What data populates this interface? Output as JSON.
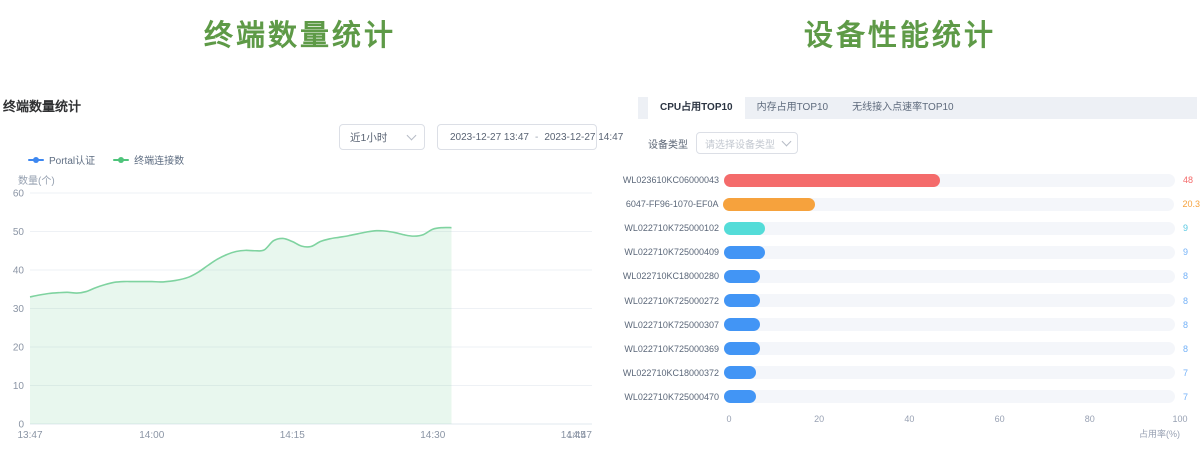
{
  "theme": {
    "title_green": "#5e9a47"
  },
  "left_panel": {
    "big_title": "终端数量统计",
    "panel_title": "终端数量统计",
    "time_select": {
      "value": "近1小时"
    },
    "date_range": {
      "start": "2023-12-27 13:47",
      "separator": "-",
      "end": "2023-12-27 14:47"
    },
    "legend": [
      {
        "label": "Portal认证",
        "color": "#3d87f0"
      },
      {
        "label": "终端连接数",
        "color": "#4ec47b"
      }
    ],
    "chart_data": {
      "type": "area",
      "title": "终端数量统计",
      "ylabel": "数量(个)",
      "xlabel": "",
      "ylim": [
        0,
        60
      ],
      "y_ticks": [
        0,
        10,
        20,
        30,
        40,
        50,
        60
      ],
      "grid": true,
      "legend_position": "top-left",
      "x_range_minutes": 60,
      "x_ticks": [
        {
          "label": "13:47",
          "minute": 0
        },
        {
          "label": "14:00",
          "minute": 13
        },
        {
          "label": "14:15",
          "minute": 28
        },
        {
          "label": "14:30",
          "minute": 43
        },
        {
          "label": "14:45",
          "minute": 58
        },
        {
          "label": "14:47",
          "minute": 60
        }
      ],
      "series": [
        {
          "name": "Portal认证",
          "color": "#3d87f0",
          "fill": "rgba(61,135,240,0.15)",
          "points": []
        },
        {
          "name": "终端连接数",
          "color": "#7fd3a0",
          "fill": "rgba(127,211,160,0.18)",
          "points": [
            [
              0,
              33
            ],
            [
              1,
              33.5
            ],
            [
              2,
              33.9
            ],
            [
              3,
              34.1
            ],
            [
              4,
              34.2
            ],
            [
              5,
              34
            ],
            [
              6,
              34.4
            ],
            [
              7,
              35.4
            ],
            [
              8,
              36.2
            ],
            [
              9,
              36.8
            ],
            [
              10,
              37
            ],
            [
              11,
              37
            ],
            [
              12,
              37
            ],
            [
              13,
              37
            ],
            [
              14,
              36.9
            ],
            [
              15,
              37.1
            ],
            [
              16,
              37.5
            ],
            [
              17,
              38.2
            ],
            [
              18,
              39.5
            ],
            [
              19,
              41.2
            ],
            [
              20,
              42.8
            ],
            [
              21,
              44
            ],
            [
              22,
              44.8
            ],
            [
              23,
              45.1
            ],
            [
              24,
              45
            ],
            [
              25,
              45.2
            ],
            [
              26,
              47.6
            ],
            [
              27,
              48.2
            ],
            [
              28,
              47.4
            ],
            [
              29,
              46.2
            ],
            [
              30,
              46.1
            ],
            [
              31,
              47.4
            ],
            [
              32,
              48.1
            ],
            [
              33,
              48.5
            ],
            [
              34,
              48.9
            ],
            [
              35,
              49.4
            ],
            [
              36,
              49.9
            ],
            [
              37,
              50.2
            ],
            [
              38,
              50.1
            ],
            [
              39,
              49.7
            ],
            [
              40,
              49.1
            ],
            [
              41,
              48.8
            ],
            [
              42,
              49.2
            ],
            [
              43,
              50.6
            ],
            [
              44,
              51
            ],
            [
              45,
              51
            ]
          ]
        }
      ]
    }
  },
  "right_panel": {
    "big_title": "设备性能统计",
    "tabs": [
      {
        "id": "cpu",
        "label": "CPU占用TOP10",
        "active": true
      },
      {
        "id": "memory",
        "label": "内存占用TOP10",
        "active": false
      },
      {
        "id": "wireless",
        "label": "无线接入点速率TOP10",
        "active": false
      }
    ],
    "filter": {
      "label": "设备类型",
      "placeholder": "请选择设备类型"
    },
    "chart_data": {
      "type": "bar",
      "orientation": "horizontal",
      "xlabel": "占用率(%)",
      "xlim": [
        0,
        100
      ],
      "x_ticks": [
        0,
        20,
        40,
        60,
        80,
        100
      ],
      "categories": [
        "WL023610KC06000043",
        "6047-FF96-1070-EF0A",
        "WL022710K725000102",
        "WL022710K725000409",
        "WL022710KC18000280",
        "WL022710K725000272",
        "WL022710K725000307",
        "WL022710K725000369",
        "WL022710KC18000372",
        "WL022710K725000470"
      ],
      "values": [
        48,
        20.3,
        9,
        9,
        8,
        8,
        8,
        8,
        7,
        7
      ],
      "bar_colors": [
        "#f46b6b",
        "#f6a23d",
        "#54dcd8",
        "#4295f5",
        "#4295f5",
        "#4295f5",
        "#4295f5",
        "#4295f5",
        "#4295f5",
        "#4295f5"
      ],
      "value_colors": [
        "#f46b6b",
        "#f6a23d",
        "#58c8e2",
        "#74b2f8",
        "#74b2f8",
        "#74b2f8",
        "#74b2f8",
        "#74b2f8",
        "#74b2f8",
        "#74b2f8"
      ],
      "track_color": "#f4f6fa"
    }
  }
}
